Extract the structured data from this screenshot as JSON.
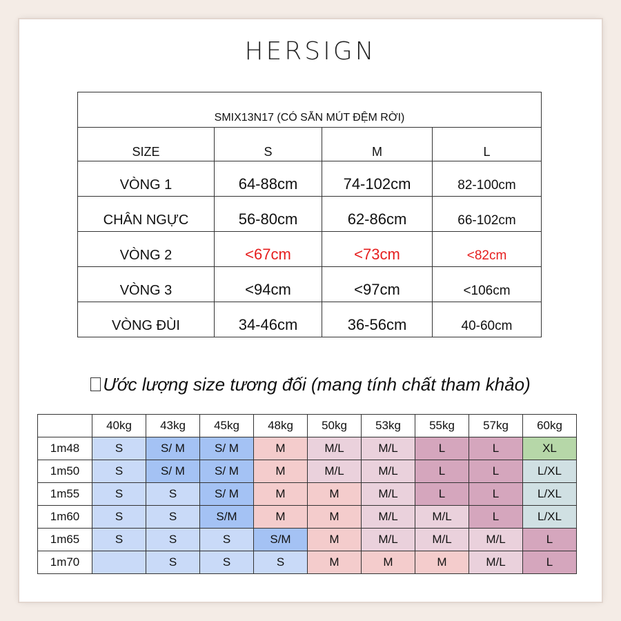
{
  "brand": "HERSIGN",
  "size_table": {
    "title": "SMIX13N17 (CÓ SẴN MÚT ĐỆM RỜI)",
    "headers": [
      "SIZE",
      "S",
      "M",
      "L"
    ],
    "rows": [
      {
        "label": "VÒNG 1",
        "values": [
          "64-88cm",
          "74-102cm",
          "82-100cm"
        ],
        "highlight": false
      },
      {
        "label": "CHÂN NGỰC",
        "values": [
          "56-80cm",
          "62-86cm",
          "66-102cm"
        ],
        "highlight": false
      },
      {
        "label": "VÒNG 2",
        "values": [
          "<67cm",
          "<73cm",
          "<82cm"
        ],
        "highlight": true,
        "highlight_color": "#e61e1e"
      },
      {
        "label": "VÒNG 3",
        "values": [
          "<94cm",
          "<97cm",
          "<106cm"
        ],
        "highlight": false
      },
      {
        "label": "VÒNG ĐÙI",
        "values": [
          "34-46cm",
          "36-56cm",
          "40-60cm"
        ],
        "highlight": false
      }
    ]
  },
  "estimate": {
    "heading": "Ước lượng size tương đối (mang tính chất tham khảo)",
    "weights": [
      "40kg",
      "43kg",
      "45kg",
      "48kg",
      "50kg",
      "53kg",
      "55kg",
      "57kg",
      "60kg"
    ],
    "rows": [
      {
        "height": "1m48",
        "sizes": [
          "S",
          "S/ M",
          "S/ M",
          "M",
          "M/L",
          "M/L",
          "L",
          "L",
          "XL"
        ]
      },
      {
        "height": "1m50",
        "sizes": [
          "S",
          "S/ M",
          "S/ M",
          "M",
          "M/L",
          "M/L",
          "L",
          "L",
          "L/XL"
        ]
      },
      {
        "height": "1m55",
        "sizes": [
          "S",
          "S",
          "S/ M",
          "M",
          "M",
          "M/L",
          "L",
          "L",
          "L/XL"
        ]
      },
      {
        "height": "1m60",
        "sizes": [
          "S",
          "S",
          "S/M",
          "M",
          "M",
          "M/L",
          "M/L",
          "L",
          "L/XL"
        ]
      },
      {
        "height": "1m65",
        "sizes": [
          "S",
          "S",
          "S",
          "S/M",
          "M",
          "M/L",
          "M/L",
          "M/L",
          "L"
        ]
      },
      {
        "height": "1m70",
        "sizes": [
          "",
          "S",
          "S",
          "S",
          "M",
          "M",
          "M",
          "M/L",
          "L"
        ]
      }
    ],
    "colors": {
      "S": "#c9daf8",
      "S/M": "#a4c2f4",
      "M": "#f4cccc",
      "M/L": "#ead1dc",
      "L": "#d5a6bd",
      "XL": "#b6d7a8",
      "L/XL": "#d0e0e3"
    }
  }
}
